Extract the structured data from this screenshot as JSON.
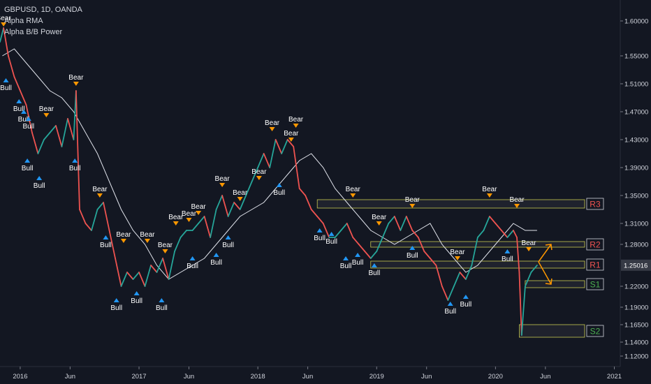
{
  "legend": {
    "symbol_line": "GBPUSD, 1D, OANDA",
    "indicator1": "Alpha RMA",
    "indicator2": "Alpha B/B Power"
  },
  "colors": {
    "background": "#131722",
    "axis_text": "#d1d4dc",
    "bull_candle": "#26a69a",
    "bear_candle": "#ef5350",
    "rma_line": "#e0e3eb",
    "bear_marker": "#ff9800",
    "bull_marker": "#2196f3",
    "zone_border": "#c8c850",
    "resistance_label": "#ef5350",
    "support_label": "#4caf50",
    "price_tag": "#363a45",
    "arrow": "#ff9800"
  },
  "chart_data": {
    "type": "line",
    "y_ticks": [
      "1.60000",
      "1.55000",
      "1.51000",
      "1.47000",
      "1.43000",
      "1.39000",
      "1.35000",
      "1.31000",
      "1.28000",
      "1.22000",
      "1.19000",
      "1.16500",
      "1.14000",
      "1.12000"
    ],
    "y_tick_values": [
      1.6,
      1.55,
      1.51,
      1.47,
      1.43,
      1.39,
      1.35,
      1.31,
      1.28,
      1.22,
      1.19,
      1.165,
      1.14,
      1.12
    ],
    "ylim": [
      1.105,
      1.63
    ],
    "x_ticks": [
      "2016",
      "Jun",
      "2017",
      "Jun",
      "2018",
      "Jun",
      "2019",
      "Jun",
      "2020",
      "Jun",
      "2021"
    ],
    "x_tick_values": [
      2016.0,
      2016.42,
      2017.0,
      2017.42,
      2018.0,
      2018.42,
      2019.0,
      2019.42,
      2020.0,
      2020.42,
      2021.0
    ],
    "xlim": [
      2015.83,
      2021.05
    ],
    "current_price": "1.25016",
    "current_price_value": 1.25016,
    "price_series": {
      "name": "",
      "x": [
        2015.83,
        2015.86,
        2015.9,
        2015.95,
        2016.0,
        2016.05,
        2016.1,
        2016.15,
        2016.2,
        2016.25,
        2016.3,
        2016.35,
        2016.4,
        2016.45,
        2016.47,
        2016.5,
        2016.55,
        2016.6,
        2016.65,
        2016.7,
        2016.75,
        2016.8,
        2016.85,
        2016.9,
        2016.95,
        2017.0,
        2017.05,
        2017.1,
        2017.15,
        2017.2,
        2017.25,
        2017.3,
        2017.35,
        2017.4,
        2017.45,
        2017.5,
        2017.55,
        2017.6,
        2017.65,
        2017.7,
        2017.75,
        2017.8,
        2017.85,
        2017.9,
        2017.95,
        2018.0,
        2018.05,
        2018.1,
        2018.15,
        2018.2,
        2018.25,
        2018.3,
        2018.35,
        2018.4,
        2018.45,
        2018.5,
        2018.55,
        2018.6,
        2018.65,
        2018.7,
        2018.75,
        2018.8,
        2018.85,
        2018.9,
        2018.95,
        2019.0,
        2019.05,
        2019.1,
        2019.15,
        2019.2,
        2019.25,
        2019.3,
        2019.35,
        2019.4,
        2019.45,
        2019.5,
        2019.55,
        2019.6,
        2019.65,
        2019.7,
        2019.75,
        2019.8,
        2019.85,
        2019.9,
        2019.95,
        2020.0,
        2020.05,
        2020.1,
        2020.15,
        2020.18,
        2020.2,
        2020.22,
        2020.25,
        2020.3,
        2020.35
      ],
      "y": [
        1.57,
        1.59,
        1.55,
        1.52,
        1.5,
        1.48,
        1.44,
        1.41,
        1.43,
        1.44,
        1.45,
        1.42,
        1.46,
        1.43,
        1.5,
        1.33,
        1.31,
        1.3,
        1.33,
        1.34,
        1.3,
        1.26,
        1.22,
        1.24,
        1.23,
        1.24,
        1.22,
        1.25,
        1.24,
        1.26,
        1.23,
        1.27,
        1.29,
        1.3,
        1.3,
        1.31,
        1.32,
        1.29,
        1.33,
        1.35,
        1.32,
        1.34,
        1.33,
        1.35,
        1.37,
        1.39,
        1.41,
        1.39,
        1.43,
        1.41,
        1.43,
        1.42,
        1.36,
        1.35,
        1.33,
        1.32,
        1.31,
        1.29,
        1.29,
        1.3,
        1.31,
        1.29,
        1.28,
        1.27,
        1.26,
        1.27,
        1.29,
        1.31,
        1.32,
        1.3,
        1.32,
        1.3,
        1.29,
        1.27,
        1.26,
        1.25,
        1.22,
        1.2,
        1.22,
        1.24,
        1.23,
        1.25,
        1.29,
        1.3,
        1.32,
        1.31,
        1.3,
        1.29,
        1.3,
        1.29,
        1.24,
        1.15,
        1.22,
        1.24,
        1.25
      ]
    },
    "rma_series": {
      "name": "",
      "x": [
        2015.85,
        2015.95,
        2016.05,
        2016.15,
        2016.25,
        2016.35,
        2016.45,
        2016.55,
        2016.65,
        2016.75,
        2016.85,
        2016.95,
        2017.05,
        2017.15,
        2017.25,
        2017.35,
        2017.45,
        2017.55,
        2017.65,
        2017.75,
        2017.85,
        2017.95,
        2018.05,
        2018.15,
        2018.25,
        2018.35,
        2018.45,
        2018.55,
        2018.65,
        2018.75,
        2018.85,
        2018.95,
        2019.05,
        2019.15,
        2019.25,
        2019.35,
        2019.45,
        2019.55,
        2019.65,
        2019.75,
        2019.85,
        2019.95,
        2020.05,
        2020.15,
        2020.25,
        2020.35
      ],
      "y": [
        1.55,
        1.56,
        1.54,
        1.52,
        1.5,
        1.49,
        1.47,
        1.44,
        1.41,
        1.37,
        1.33,
        1.3,
        1.28,
        1.25,
        1.23,
        1.24,
        1.25,
        1.26,
        1.28,
        1.3,
        1.32,
        1.33,
        1.34,
        1.36,
        1.38,
        1.4,
        1.41,
        1.39,
        1.36,
        1.34,
        1.32,
        1.3,
        1.29,
        1.28,
        1.29,
        1.3,
        1.31,
        1.28,
        1.26,
        1.24,
        1.25,
        1.27,
        1.29,
        1.31,
        1.3,
        1.3
      ]
    },
    "zones": [
      {
        "label": "R3",
        "type": "resistance",
        "x_start": 2018.5,
        "x_end": 2020.75,
        "y_low": 1.332,
        "y_high": 1.344
      },
      {
        "label": "R2",
        "type": "resistance",
        "x_start": 2018.95,
        "x_end": 2020.75,
        "y_low": 1.276,
        "y_high": 1.284
      },
      {
        "label": "R1",
        "type": "resistance",
        "x_start": 2018.95,
        "x_end": 2020.75,
        "y_low": 1.246,
        "y_high": 1.256
      },
      {
        "label": "S1",
        "type": "support",
        "x_start": 2020.25,
        "x_end": 2020.75,
        "y_low": 1.218,
        "y_high": 1.228
      },
      {
        "label": "S2",
        "type": "support",
        "x_start": 2020.2,
        "x_end": 2020.75,
        "y_low": 1.147,
        "y_high": 1.165
      }
    ],
    "signals": [
      {
        "label": "Bear",
        "type": "bear",
        "x": 2015.86,
        "y": 1.59
      },
      {
        "label": "Bull",
        "type": "bull",
        "x": 2015.88,
        "y": 1.52
      },
      {
        "label": "Bull",
        "type": "bull",
        "x": 2015.99,
        "y": 1.49
      },
      {
        "label": "Bull",
        "type": "bull",
        "x": 2016.03,
        "y": 1.475
      },
      {
        "label": "Bull",
        "type": "bull",
        "x": 2016.07,
        "y": 1.465
      },
      {
        "label": "Bear",
        "type": "bear",
        "x": 2016.22,
        "y": 1.46
      },
      {
        "label": "Bull",
        "type": "bull",
        "x": 2016.06,
        "y": 1.405
      },
      {
        "label": "Bull",
        "type": "bull",
        "x": 2016.16,
        "y": 1.38
      },
      {
        "label": "Bear",
        "type": "bear",
        "x": 2016.47,
        "y": 1.505
      },
      {
        "label": "Bull",
        "type": "bull",
        "x": 2016.46,
        "y": 1.405
      },
      {
        "label": "Bear",
        "type": "bear",
        "x": 2016.67,
        "y": 1.345
      },
      {
        "label": "Bull",
        "type": "bull",
        "x": 2016.72,
        "y": 1.295
      },
      {
        "label": "Bull",
        "type": "bull",
        "x": 2016.81,
        "y": 1.205
      },
      {
        "label": "Bear",
        "type": "bear",
        "x": 2016.87,
        "y": 1.28
      },
      {
        "label": "Bull",
        "type": "bull",
        "x": 2016.98,
        "y": 1.215
      },
      {
        "label": "Bear",
        "type": "bear",
        "x": 2017.07,
        "y": 1.28
      },
      {
        "label": "Bull",
        "type": "bull",
        "x": 2017.19,
        "y": 1.205
      },
      {
        "label": "Bear",
        "type": "bear",
        "x": 2017.22,
        "y": 1.265
      },
      {
        "label": "Bear",
        "type": "bear",
        "x": 2017.31,
        "y": 1.305
      },
      {
        "label": "Bear",
        "type": "bear",
        "x": 2017.42,
        "y": 1.31
      },
      {
        "label": "Bear",
        "type": "bear",
        "x": 2017.5,
        "y": 1.32
      },
      {
        "label": "Bull",
        "type": "bull",
        "x": 2017.45,
        "y": 1.265
      },
      {
        "label": "Bear",
        "type": "bear",
        "x": 2017.7,
        "y": 1.36
      },
      {
        "label": "Bull",
        "type": "bull",
        "x": 2017.65,
        "y": 1.27
      },
      {
        "label": "Bull",
        "type": "bull",
        "x": 2017.75,
        "y": 1.295
      },
      {
        "label": "Bear",
        "type": "bear",
        "x": 2017.85,
        "y": 1.34
      },
      {
        "label": "Bear",
        "type": "bear",
        "x": 2018.01,
        "y": 1.37
      },
      {
        "label": "Bear",
        "type": "bear",
        "x": 2018.12,
        "y": 1.44
      },
      {
        "label": "Bull",
        "type": "bull",
        "x": 2018.18,
        "y": 1.37
      },
      {
        "label": "Bear",
        "type": "bear",
        "x": 2018.28,
        "y": 1.425
      },
      {
        "label": "Bear",
        "type": "bear",
        "x": 2018.32,
        "y": 1.445
      },
      {
        "label": "Bull",
        "type": "bull",
        "x": 2018.52,
        "y": 1.305
      },
      {
        "label": "Bull",
        "type": "bull",
        "x": 2018.62,
        "y": 1.3
      },
      {
        "label": "Bull",
        "type": "bull",
        "x": 2018.74,
        "y": 1.265
      },
      {
        "label": "Bear",
        "type": "bear",
        "x": 2018.8,
        "y": 1.345
      },
      {
        "label": "Bull",
        "type": "bull",
        "x": 2018.84,
        "y": 1.27
      },
      {
        "label": "Bear",
        "type": "bear",
        "x": 2019.02,
        "y": 1.305
      },
      {
        "label": "Bull",
        "type": "bull",
        "x": 2018.98,
        "y": 1.255
      },
      {
        "label": "Bear",
        "type": "bear",
        "x": 2019.3,
        "y": 1.33
      },
      {
        "label": "Bull",
        "type": "bull",
        "x": 2019.3,
        "y": 1.28
      },
      {
        "label": "Bear",
        "type": "bear",
        "x": 2019.68,
        "y": 1.255
      },
      {
        "label": "Bull",
        "type": "bull",
        "x": 2019.62,
        "y": 1.2
      },
      {
        "label": "Bull",
        "type": "bull",
        "x": 2019.75,
        "y": 1.21
      },
      {
        "label": "Bear",
        "type": "bear",
        "x": 2019.95,
        "y": 1.345
      },
      {
        "label": "Bull",
        "type": "bull",
        "x": 2020.1,
        "y": 1.275
      },
      {
        "label": "Bear",
        "type": "bear",
        "x": 2020.18,
        "y": 1.33
      },
      {
        "label": "Bear",
        "type": "bear",
        "x": 2020.28,
        "y": 1.268
      }
    ]
  }
}
